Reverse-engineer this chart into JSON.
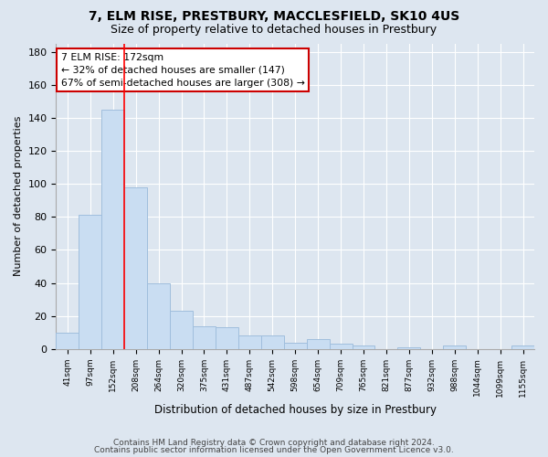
{
  "title1": "7, ELM RISE, PRESTBURY, MACCLESFIELD, SK10 4US",
  "title2": "Size of property relative to detached houses in Prestbury",
  "xlabel": "Distribution of detached houses by size in Prestbury",
  "ylabel": "Number of detached properties",
  "categories": [
    "41sqm",
    "97sqm",
    "152sqm",
    "208sqm",
    "264sqm",
    "320sqm",
    "375sqm",
    "431sqm",
    "487sqm",
    "542sqm",
    "598sqm",
    "654sqm",
    "709sqm",
    "765sqm",
    "821sqm",
    "877sqm",
    "932sqm",
    "988sqm",
    "1044sqm",
    "1099sqm",
    "1155sqm"
  ],
  "values": [
    10,
    81,
    145,
    98,
    40,
    23,
    14,
    13,
    8,
    8,
    4,
    6,
    3,
    2,
    0,
    1,
    0,
    2,
    0,
    0,
    2
  ],
  "bar_color": "#c9ddf2",
  "bar_edge_color": "#a0bedd",
  "background_color": "#dde6f0",
  "grid_color": "#ffffff",
  "redline_x": 2.5,
  "annotation_line1": "7 ELM RISE: 172sqm",
  "annotation_line2": "← 32% of detached houses are smaller (147)",
  "annotation_line3": "67% of semi-detached houses are larger (308) →",
  "annotation_box_color": "#ffffff",
  "annotation_box_edge": "#cc0000",
  "footer1": "Contains HM Land Registry data © Crown copyright and database right 2024.",
  "footer2": "Contains public sector information licensed under the Open Government Licence v3.0.",
  "ylim": [
    0,
    185
  ],
  "yticks": [
    0,
    20,
    40,
    60,
    80,
    100,
    120,
    140,
    160,
    180
  ]
}
